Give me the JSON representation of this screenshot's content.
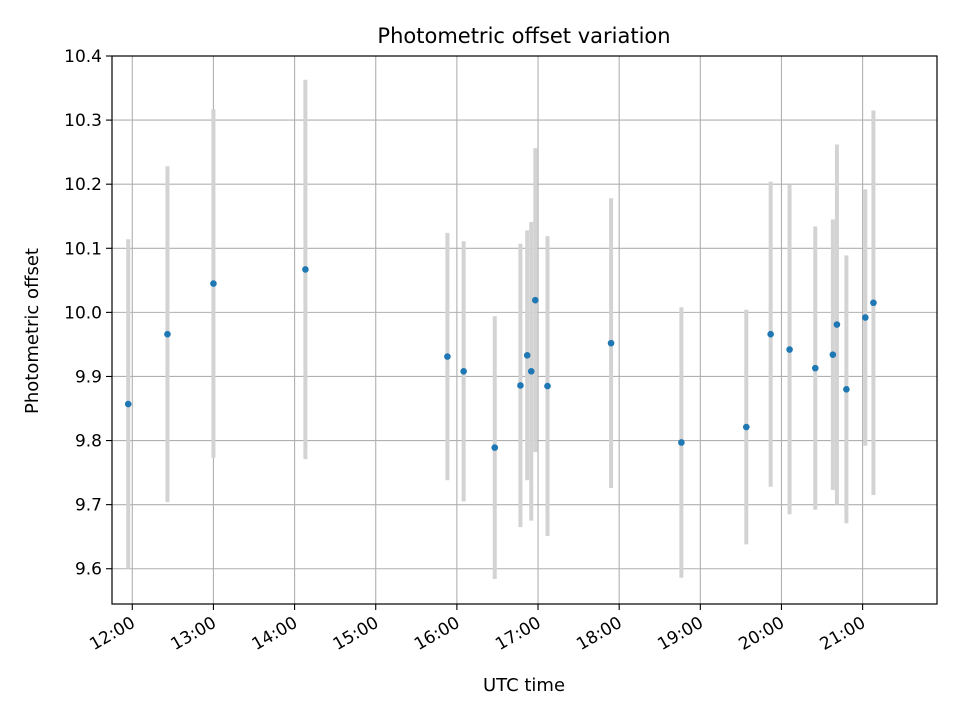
{
  "chart_data": {
    "type": "scatter",
    "title": "Photometric offset variation",
    "xlabel": "UTC time",
    "ylabel": "Photometric offset",
    "xlim": [
      "11:45",
      "21:55"
    ],
    "ylim": [
      9.545,
      10.4
    ],
    "xticks": [
      "12:00",
      "13:00",
      "14:00",
      "15:00",
      "16:00",
      "17:00",
      "18:00",
      "19:00",
      "20:00",
      "21:00"
    ],
    "yticks": [
      "9.6",
      "9.7",
      "9.8",
      "9.9",
      "10.0",
      "10.1",
      "10.2",
      "10.3",
      "10.4"
    ],
    "grid": true,
    "series": [
      {
        "marker_color": "#1f77b4",
        "errorbar_color": "#d3d3d3",
        "points": [
          {
            "x": "11:57",
            "y": 9.857,
            "err": 0.257
          },
          {
            "x": "12:26",
            "y": 9.966,
            "err": 0.262
          },
          {
            "x": "13:00",
            "y": 10.045,
            "err": 0.272
          },
          {
            "x": "14:08",
            "y": 10.067,
            "err": 0.296
          },
          {
            "x": "15:53",
            "y": 9.931,
            "err": 0.193
          },
          {
            "x": "16:05",
            "y": 9.908,
            "err": 0.203
          },
          {
            "x": "16:28",
            "y": 9.789,
            "err": 0.205
          },
          {
            "x": "16:47",
            "y": 9.886,
            "err": 0.221
          },
          {
            "x": "16:52",
            "y": 9.933,
            "err": 0.195
          },
          {
            "x": "16:55",
            "y": 9.908,
            "err": 0.233
          },
          {
            "x": "16:58",
            "y": 10.019,
            "err": 0.237
          },
          {
            "x": "17:07",
            "y": 9.885,
            "err": 0.234
          },
          {
            "x": "17:54",
            "y": 9.952,
            "err": 0.226
          },
          {
            "x": "18:46",
            "y": 9.797,
            "err": 0.211
          },
          {
            "x": "19:34",
            "y": 9.821,
            "err": 0.183
          },
          {
            "x": "19:52",
            "y": 9.966,
            "err": 0.238
          },
          {
            "x": "20:06",
            "y": 9.942,
            "err": 0.257
          },
          {
            "x": "20:25",
            "y": 9.913,
            "err": 0.221
          },
          {
            "x": "20:38",
            "y": 9.934,
            "err": 0.211
          },
          {
            "x": "20:41",
            "y": 9.981,
            "err": 0.281
          },
          {
            "x": "20:48",
            "y": 9.88,
            "err": 0.209
          },
          {
            "x": "21:02",
            "y": 9.992,
            "err": 0.2
          },
          {
            "x": "21:08",
            "y": 10.015,
            "err": 0.3
          }
        ]
      }
    ]
  }
}
